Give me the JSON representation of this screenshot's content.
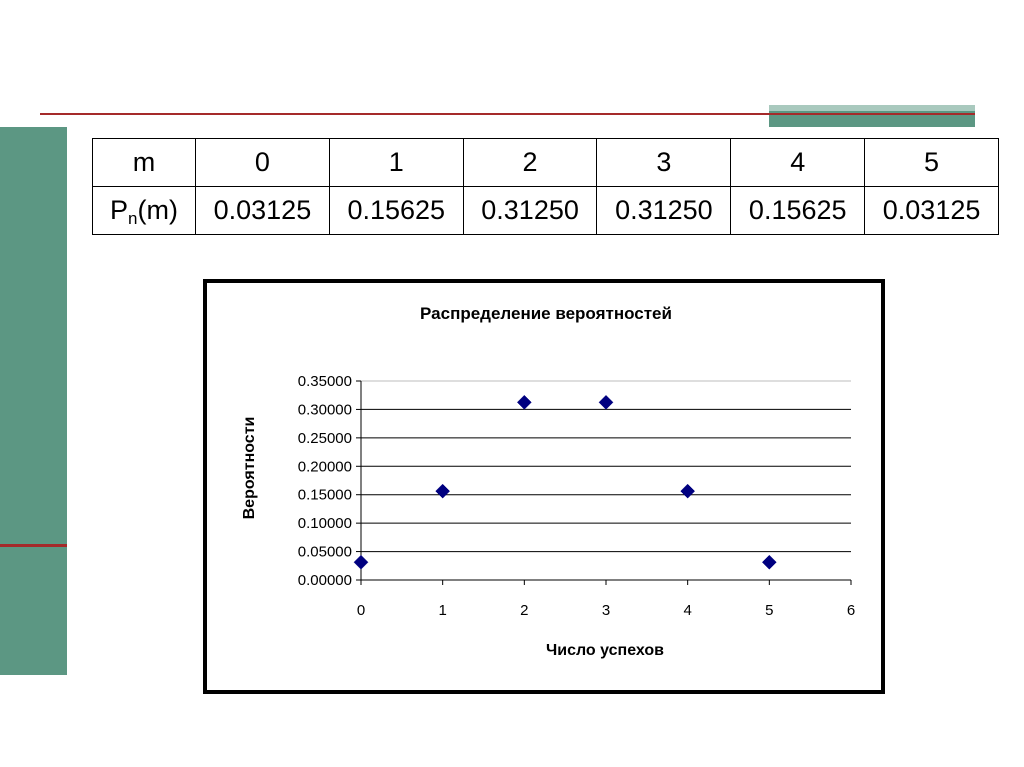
{
  "table": {
    "row1_header": "m",
    "row2_header_main": "P",
    "row2_header_sub": "n",
    "row2_header_tail": "(m)",
    "m_values": [
      "0",
      "1",
      "2",
      "3",
      "4",
      "5"
    ],
    "p_values": [
      "0.03125",
      "0.15625",
      "0.31250",
      "0.31250",
      "0.15625",
      "0.03125"
    ]
  },
  "chart_data": {
    "type": "scatter",
    "title": "Распределение вероятностей",
    "xlabel": "Число успехов",
    "ylabel": "Вероятности",
    "xlim": [
      0,
      6
    ],
    "ylim": [
      0,
      0.35
    ],
    "x_ticks": [
      "0",
      "1",
      "2",
      "3",
      "4",
      "5",
      "6"
    ],
    "y_ticks": [
      "0.00000",
      "0.05000",
      "0.10000",
      "0.15000",
      "0.20000",
      "0.25000",
      "0.30000",
      "0.35000"
    ],
    "grid": true,
    "legend": false,
    "marker": "diamond",
    "marker_color": "#000080",
    "x": [
      0,
      1,
      2,
      3,
      4,
      5
    ],
    "y": [
      0.03125,
      0.15625,
      0.3125,
      0.3125,
      0.15625,
      0.03125
    ]
  },
  "colors": {
    "accent_green": "#5c9783",
    "accent_red": "#a52a2a"
  }
}
